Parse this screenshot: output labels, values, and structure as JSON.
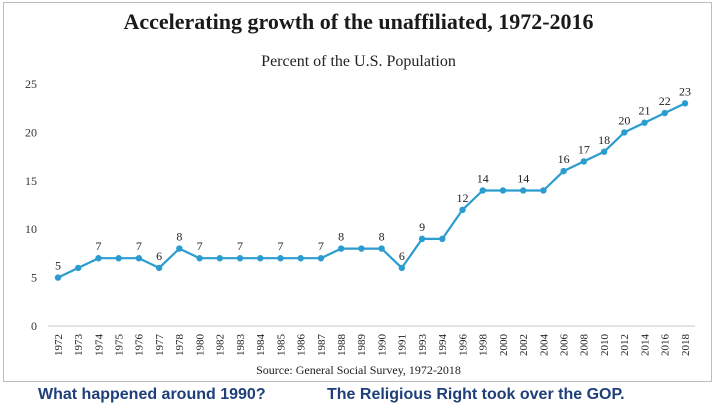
{
  "chart_data": {
    "type": "line",
    "title": "Accelerating growth of the unaffiliated, 1972-2016",
    "subtitle": "Percent of the U.S. Population",
    "source": "Source: General Social Survey, 1972-2018",
    "categories": [
      "1972",
      "1973",
      "1974",
      "1975",
      "1976",
      "1977",
      "1978",
      "1980",
      "1982",
      "1983",
      "1984",
      "1985",
      "1986",
      "1987",
      "1988",
      "1989",
      "1990",
      "1991",
      "1993",
      "1994",
      "1996",
      "1998",
      "2000",
      "2002",
      "2004",
      "2006",
      "2008",
      "2010",
      "2012",
      "2014",
      "2016",
      "2018"
    ],
    "series": [
      {
        "values": [
          5,
          6,
          7,
          7,
          7,
          6,
          8,
          7,
          7,
          7,
          7,
          7,
          7,
          7,
          8,
          8,
          8,
          6,
          9,
          9,
          12,
          14,
          14,
          14,
          14,
          16,
          17,
          18,
          20,
          21,
          22,
          23
        ]
      }
    ],
    "data_labels": [
      {
        "index": 0,
        "text": "5"
      },
      {
        "index": 2,
        "text": "7"
      },
      {
        "index": 4,
        "text": "7"
      },
      {
        "index": 5,
        "text": "6"
      },
      {
        "index": 6,
        "text": "8"
      },
      {
        "index": 7,
        "text": "7"
      },
      {
        "index": 9,
        "text": "7"
      },
      {
        "index": 11,
        "text": "7"
      },
      {
        "index": 13,
        "text": "7"
      },
      {
        "index": 14,
        "text": "8"
      },
      {
        "index": 16,
        "text": "8"
      },
      {
        "index": 17,
        "text": "6"
      },
      {
        "index": 18,
        "text": "9"
      },
      {
        "index": 20,
        "text": "12"
      },
      {
        "index": 21,
        "text": "14"
      },
      {
        "index": 23,
        "text": "14"
      },
      {
        "index": 25,
        "text": "16"
      },
      {
        "index": 26,
        "text": "17"
      },
      {
        "index": 27,
        "text": "18"
      },
      {
        "index": 28,
        "text": "20"
      },
      {
        "index": 29,
        "text": "21"
      },
      {
        "index": 30,
        "text": "22"
      },
      {
        "index": 31,
        "text": "23"
      }
    ],
    "yticks": [
      0,
      5,
      10,
      15,
      20,
      25
    ],
    "ylim": [
      0,
      25
    ],
    "grid": false,
    "line_color": "#2b9ccf",
    "xlabel": "",
    "ylabel": ""
  },
  "captions": {
    "question": "What happened around 1990?",
    "answer": "The Religious Right took over the GOP."
  }
}
